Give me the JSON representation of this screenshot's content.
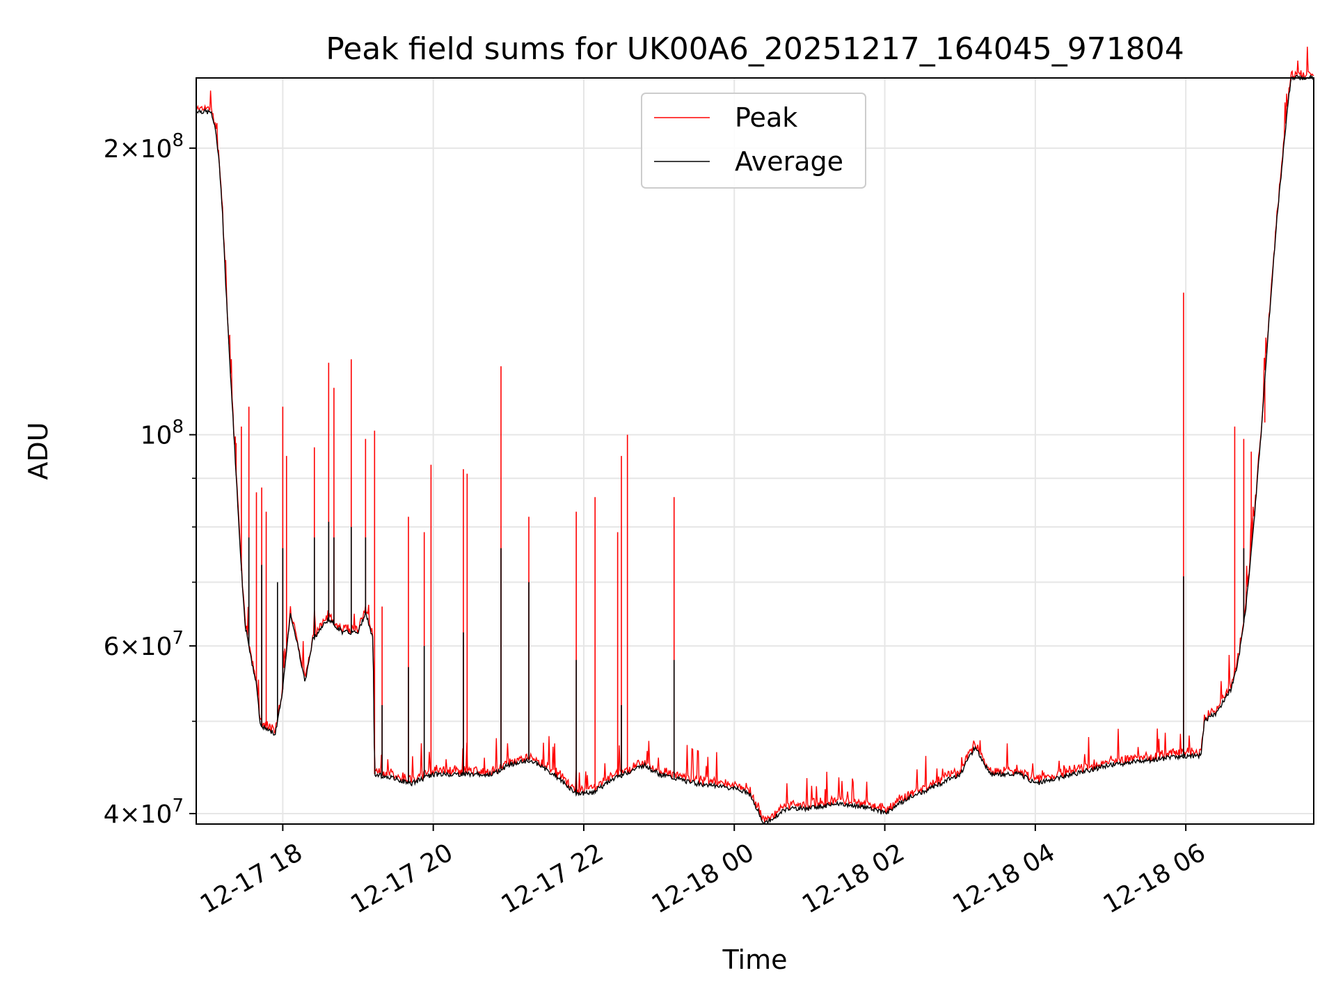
{
  "chart_data": {
    "type": "line",
    "title": "Peak field sums for UK00A6_20251217_164045_971804",
    "xlabel": "Time",
    "ylabel": "ADU",
    "yscale": "log",
    "grid": true,
    "legend_position": "top-center",
    "xlim": [
      16.85,
      31.7
    ],
    "ylim": [
      39000000,
      237000000
    ],
    "x_unit": "hours since 2025-12-17 00:00",
    "x_ticks": [
      {
        "value": 18,
        "label": "12-17 18"
      },
      {
        "value": 20,
        "label": "12-17 20"
      },
      {
        "value": 22,
        "label": "12-17 22"
      },
      {
        "value": 24,
        "label": "12-18 00"
      },
      {
        "value": 26,
        "label": "12-18 02"
      },
      {
        "value": 28,
        "label": "12-18 04"
      },
      {
        "value": 30,
        "label": "12-18 06"
      }
    ],
    "y_ticks": [
      {
        "value": 40000000,
        "mant": "4",
        "exp": "7"
      },
      {
        "value": 60000000,
        "mant": "6",
        "exp": "7"
      },
      {
        "value": 100000000,
        "mant": "",
        "exp": "8"
      },
      {
        "value": 200000000,
        "mant": "2",
        "exp": "8"
      }
    ],
    "y_minor_ticks": [
      50000000,
      70000000,
      80000000,
      90000000
    ],
    "series": [
      {
        "name": "Average",
        "color": "#000000",
        "baseline": [
          [
            16.85,
            219000000
          ],
          [
            17.05,
            218000000
          ],
          [
            17.1,
            210000000
          ],
          [
            17.15,
            195000000
          ],
          [
            17.2,
            170000000
          ],
          [
            17.25,
            140000000
          ],
          [
            17.3,
            118000000
          ],
          [
            17.35,
            100000000
          ],
          [
            17.4,
            85000000
          ],
          [
            17.45,
            72000000
          ],
          [
            17.5,
            63000000
          ],
          [
            17.55,
            60000000
          ],
          [
            17.6,
            57000000
          ],
          [
            17.65,
            55000000
          ],
          [
            17.7,
            49500000
          ],
          [
            17.9,
            48500000
          ],
          [
            18.0,
            54000000
          ],
          [
            18.1,
            65000000
          ],
          [
            18.2,
            60000000
          ],
          [
            18.3,
            55000000
          ],
          [
            18.4,
            61000000
          ],
          [
            18.6,
            64000000
          ],
          [
            18.8,
            62000000
          ],
          [
            19.0,
            62000000
          ],
          [
            19.1,
            65000000
          ],
          [
            19.2,
            61000000
          ],
          [
            19.22,
            44000000
          ],
          [
            19.5,
            43500000
          ],
          [
            19.7,
            43000000
          ],
          [
            20.0,
            44000000
          ],
          [
            20.5,
            44000000
          ],
          [
            20.8,
            44000000
          ],
          [
            21.0,
            45000000
          ],
          [
            21.3,
            45500000
          ],
          [
            21.6,
            44000000
          ],
          [
            21.9,
            42000000
          ],
          [
            22.1,
            42000000
          ],
          [
            22.4,
            43500000
          ],
          [
            22.8,
            45000000
          ],
          [
            23.0,
            44000000
          ],
          [
            23.5,
            43000000
          ],
          [
            24.0,
            42500000
          ],
          [
            24.2,
            42000000
          ],
          [
            24.4,
            39000000
          ],
          [
            24.7,
            40500000
          ],
          [
            25.0,
            40500000
          ],
          [
            25.4,
            41000000
          ],
          [
            25.8,
            40500000
          ],
          [
            26.0,
            40000000
          ],
          [
            26.3,
            41500000
          ],
          [
            26.6,
            42500000
          ],
          [
            27.0,
            44000000
          ],
          [
            27.2,
            47000000
          ],
          [
            27.4,
            44000000
          ],
          [
            27.8,
            44000000
          ],
          [
            28.0,
            43000000
          ],
          [
            28.5,
            44000000
          ],
          [
            29.0,
            45000000
          ],
          [
            29.5,
            45500000
          ],
          [
            30.0,
            46000000
          ],
          [
            30.2,
            46000000
          ],
          [
            30.25,
            50000000
          ],
          [
            30.4,
            51000000
          ],
          [
            30.6,
            54000000
          ],
          [
            30.7,
            58000000
          ],
          [
            30.8,
            66000000
          ],
          [
            30.9,
            80000000
          ],
          [
            31.0,
            100000000
          ],
          [
            31.1,
            130000000
          ],
          [
            31.2,
            165000000
          ],
          [
            31.3,
            200000000
          ],
          [
            31.35,
            220000000
          ],
          [
            31.4,
            237000000
          ],
          [
            31.7,
            237000000
          ]
        ],
        "spikes": [
          [
            17.55,
            78000000
          ],
          [
            17.72,
            73000000
          ],
          [
            17.93,
            70000000
          ],
          [
            18.0,
            76000000
          ],
          [
            18.42,
            78000000
          ],
          [
            18.61,
            81000000
          ],
          [
            18.68,
            78000000
          ],
          [
            18.91,
            80000000
          ],
          [
            19.1,
            78000000
          ],
          [
            19.32,
            52000000
          ],
          [
            19.67,
            57000000
          ],
          [
            19.88,
            60000000
          ],
          [
            20.4,
            62000000
          ],
          [
            20.9,
            76000000
          ],
          [
            21.27,
            70000000
          ],
          [
            21.9,
            58000000
          ],
          [
            22.5,
            52000000
          ],
          [
            23.2,
            58000000
          ],
          [
            29.97,
            71000000
          ],
          [
            30.77,
            76000000
          ]
        ]
      },
      {
        "name": "Peak",
        "color": "#ff0000",
        "spikes": [
          [
            17.38,
            98000000
          ],
          [
            17.45,
            102000000
          ],
          [
            17.55,
            107000000
          ],
          [
            17.65,
            87000000
          ],
          [
            17.72,
            88000000
          ],
          [
            17.78,
            83000000
          ],
          [
            18.0,
            107000000
          ],
          [
            18.05,
            95000000
          ],
          [
            18.42,
            97000000
          ],
          [
            18.61,
            119000000
          ],
          [
            18.68,
            112000000
          ],
          [
            18.91,
            120000000
          ],
          [
            19.1,
            99000000
          ],
          [
            19.22,
            101000000
          ],
          [
            19.32,
            66000000
          ],
          [
            19.67,
            82000000
          ],
          [
            19.88,
            79000000
          ],
          [
            19.97,
            93000000
          ],
          [
            20.4,
            92000000
          ],
          [
            20.45,
            91000000
          ],
          [
            20.9,
            118000000
          ],
          [
            21.27,
            82000000
          ],
          [
            21.9,
            83000000
          ],
          [
            22.15,
            86000000
          ],
          [
            22.45,
            79000000
          ],
          [
            22.5,
            95000000
          ],
          [
            22.58,
            100000000
          ],
          [
            23.2,
            86000000
          ],
          [
            29.97,
            141000000
          ],
          [
            30.65,
            102000000
          ],
          [
            30.77,
            99000000
          ],
          [
            30.87,
            96000000
          ],
          [
            31.05,
            103000000
          ]
        ]
      }
    ]
  }
}
